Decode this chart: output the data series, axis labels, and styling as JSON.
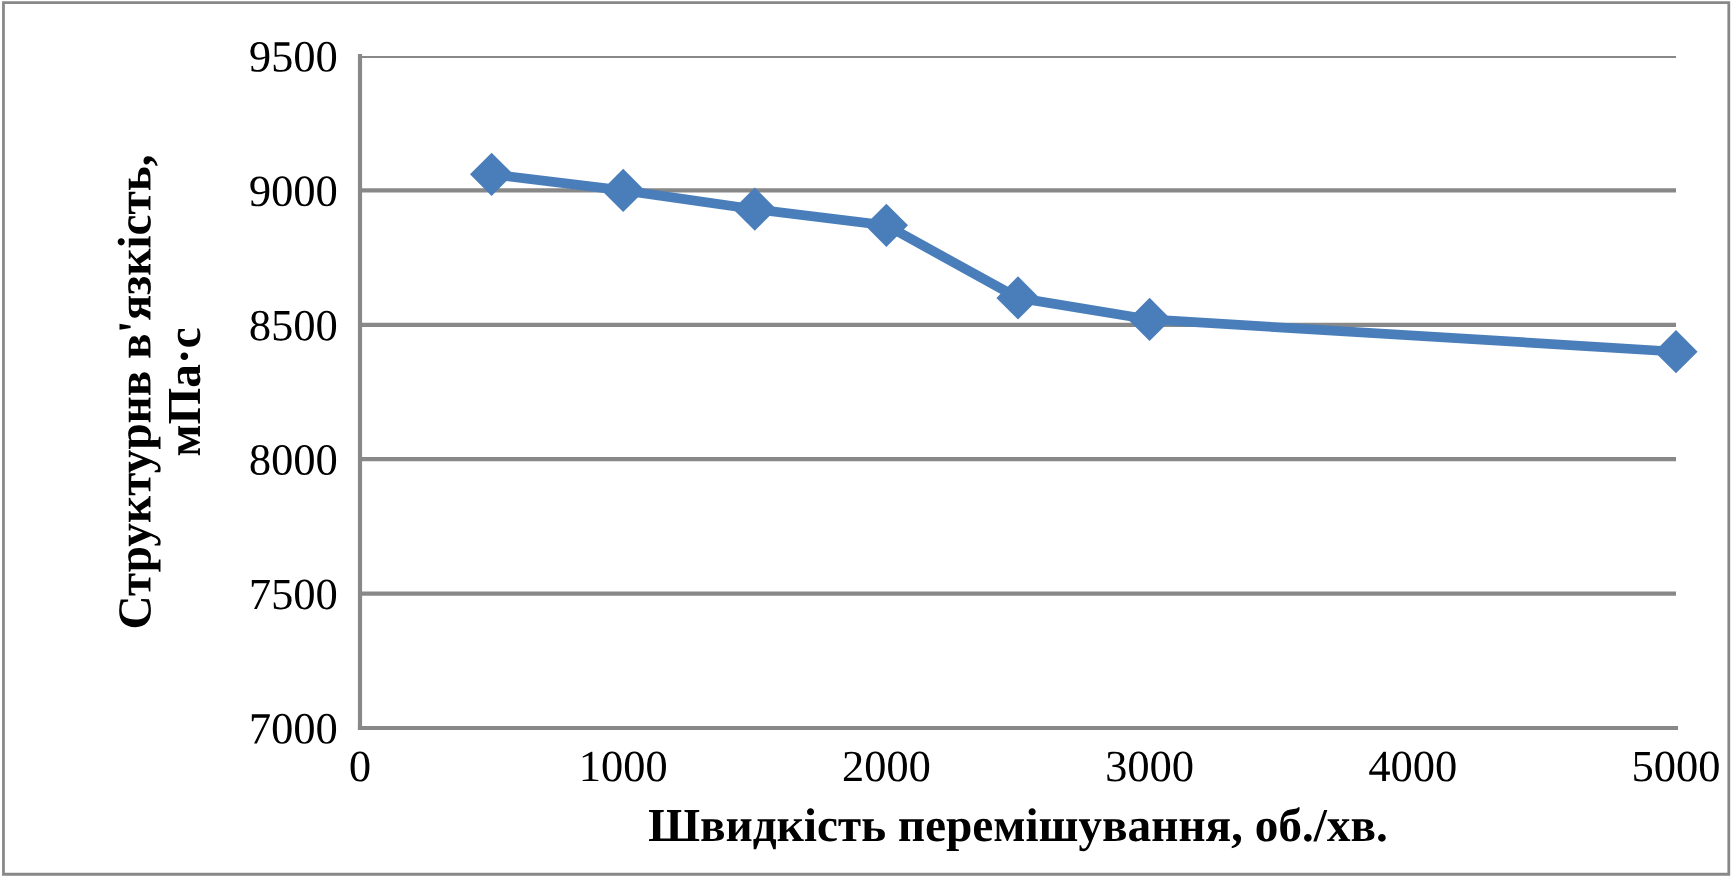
{
  "chart_data": {
    "type": "line",
    "xlabel": "Швидкість перемішування, об./хв.",
    "ylabel": "Структурнв в'язкість,\nмПа·с",
    "x": [
      500,
      1000,
      1500,
      2000,
      2500,
      3000,
      5000
    ],
    "series": [
      {
        "color": "#4a7ebb",
        "values": [
          9060,
          9000,
          8930,
          8870,
          8600,
          8520,
          8400
        ]
      }
    ],
    "xlim": [
      0,
      5000
    ],
    "xticks": [
      0,
      1000,
      2000,
      3000,
      4000,
      5000
    ],
    "ylim": [
      7000,
      9500
    ],
    "yticks": [
      7000,
      7500,
      8000,
      8500,
      9000,
      9500
    ],
    "grid": "y",
    "marker": "diamond",
    "line_style": "solid",
    "legend": false
  }
}
